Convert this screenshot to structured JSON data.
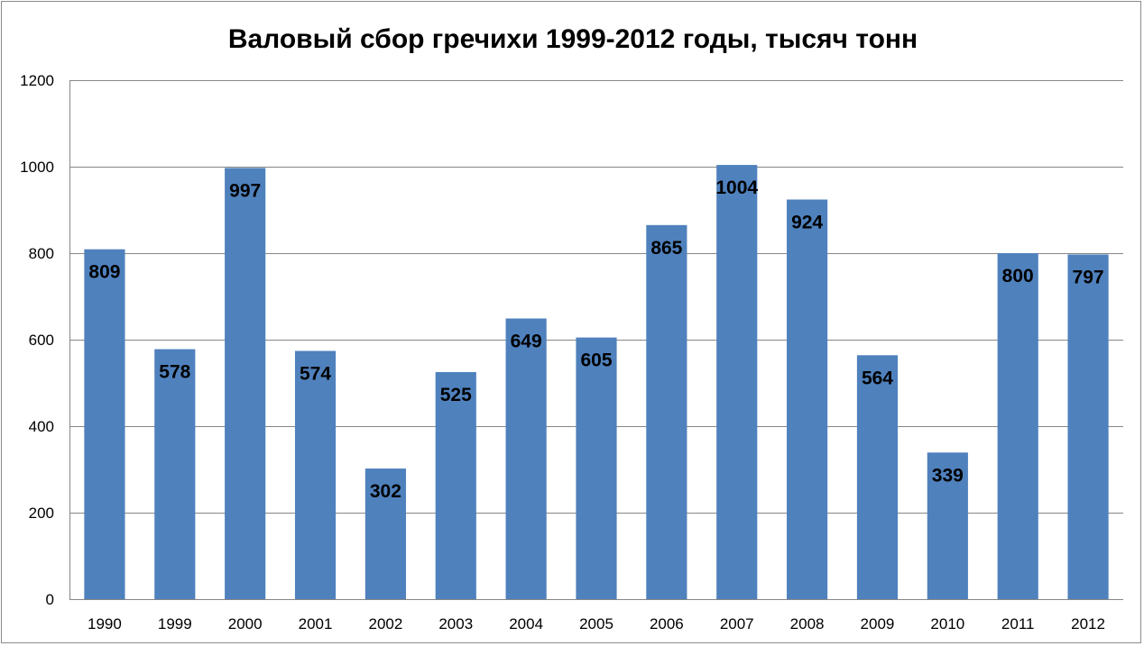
{
  "chart_data": {
    "type": "bar",
    "title": "Валовый сбор гречихи 1999-2012 годы, тысяч тонн",
    "xlabel": "",
    "ylabel": "",
    "categories": [
      "1990",
      "1999",
      "2000",
      "2001",
      "2002",
      "2003",
      "2004",
      "2005",
      "2006",
      "2007",
      "2008",
      "2009",
      "2010",
      "2011",
      "2012"
    ],
    "values": [
      809,
      578,
      997,
      574,
      302,
      525,
      649,
      605,
      865,
      1004,
      924,
      564,
      339,
      800,
      797
    ],
    "data_labels": [
      "809",
      "578",
      "997",
      "574",
      "302",
      "525",
      "649",
      "605",
      "865",
      "1004",
      "924",
      "564",
      "339",
      "800",
      "797"
    ],
    "ylim": [
      0,
      1200
    ],
    "yticks": [
      "0",
      "200",
      "400",
      "600",
      "800",
      "1000",
      "1200"
    ],
    "ytick_values": [
      0,
      200,
      400,
      600,
      800,
      1000,
      1200
    ],
    "grid": true,
    "legend": "none",
    "colors": {
      "bar": "#4f81bd",
      "gridline": "#868686",
      "axis": "#868686",
      "border": "#8c8c8c"
    }
  }
}
